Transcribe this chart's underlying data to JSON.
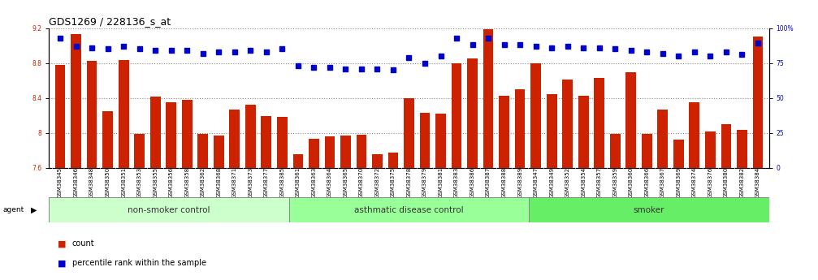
{
  "title": "GDS1269 / 228136_s_at",
  "samples": [
    "GSM38345",
    "GSM38346",
    "GSM38348",
    "GSM38350",
    "GSM38351",
    "GSM38353",
    "GSM38355",
    "GSM38356",
    "GSM38358",
    "GSM38362",
    "GSM38368",
    "GSM38371",
    "GSM38373",
    "GSM38377",
    "GSM38385",
    "GSM38361",
    "GSM38363",
    "GSM38364",
    "GSM38365",
    "GSM38370",
    "GSM38372",
    "GSM38375",
    "GSM38378",
    "GSM38379",
    "GSM38381",
    "GSM38383",
    "GSM38386",
    "GSM38387",
    "GSM38388",
    "GSM38389",
    "GSM38347",
    "GSM38349",
    "GSM38352",
    "GSM38354",
    "GSM38357",
    "GSM38359",
    "GSM38360",
    "GSM38366",
    "GSM38367",
    "GSM38369",
    "GSM38374",
    "GSM38376",
    "GSM38380",
    "GSM38382",
    "GSM38384"
  ],
  "bar_values": [
    8.78,
    9.13,
    8.82,
    8.25,
    8.83,
    7.99,
    8.42,
    8.35,
    8.38,
    7.99,
    7.97,
    8.27,
    8.32,
    8.19,
    8.18,
    7.76,
    7.93,
    7.96,
    7.97,
    7.98,
    7.76,
    7.78,
    8.4,
    8.23,
    8.22,
    8.8,
    8.85,
    9.19,
    8.43,
    8.5,
    8.8,
    8.44,
    8.61,
    8.43,
    8.63,
    7.99,
    8.69,
    7.99,
    8.27,
    7.92,
    8.35,
    8.02,
    8.1,
    8.04,
    9.1
  ],
  "percentile_values": [
    93,
    87,
    86,
    85,
    87,
    85,
    84,
    84,
    84,
    82,
    83,
    83,
    84,
    83,
    85,
    73,
    72,
    72,
    71,
    71,
    71,
    70,
    79,
    75,
    80,
    93,
    88,
    93,
    88,
    88,
    87,
    86,
    87,
    86,
    86,
    85,
    84,
    83,
    82,
    80,
    83,
    80,
    83,
    81,
    89
  ],
  "groups": [
    {
      "label": "non-smoker control",
      "start": 0,
      "end": 15,
      "color": "#ccffcc"
    },
    {
      "label": "asthmatic disease control",
      "start": 15,
      "end": 30,
      "color": "#99ff99"
    },
    {
      "label": "smoker",
      "start": 30,
      "end": 45,
      "color": "#66ee66"
    }
  ],
  "ylim_left": [
    7.6,
    9.2
  ],
  "ylim_right": [
    0,
    100
  ],
  "right_ticks": [
    0,
    25,
    50,
    75,
    100
  ],
  "right_tick_labels": [
    "0",
    "25",
    "50",
    "75",
    "100%"
  ],
  "left_ticks": [
    7.6,
    8.0,
    8.4,
    8.8,
    9.2
  ],
  "left_tick_labels": [
    "7.6",
    "8",
    "8.4",
    "8.8",
    "9.2"
  ],
  "bar_color": "#cc2200",
  "dot_color": "#0000cc",
  "bg_color": "#ffffff",
  "dotted_line_color": "#888888",
  "title_fontsize": 9,
  "tick_fontsize": 5.5,
  "group_label_fontsize": 7.5,
  "legend_fontsize": 7,
  "ylabel_left_color": "#cc2200",
  "ylabel_right_color": "#0000cc",
  "xtick_bg_color": "#cccccc"
}
